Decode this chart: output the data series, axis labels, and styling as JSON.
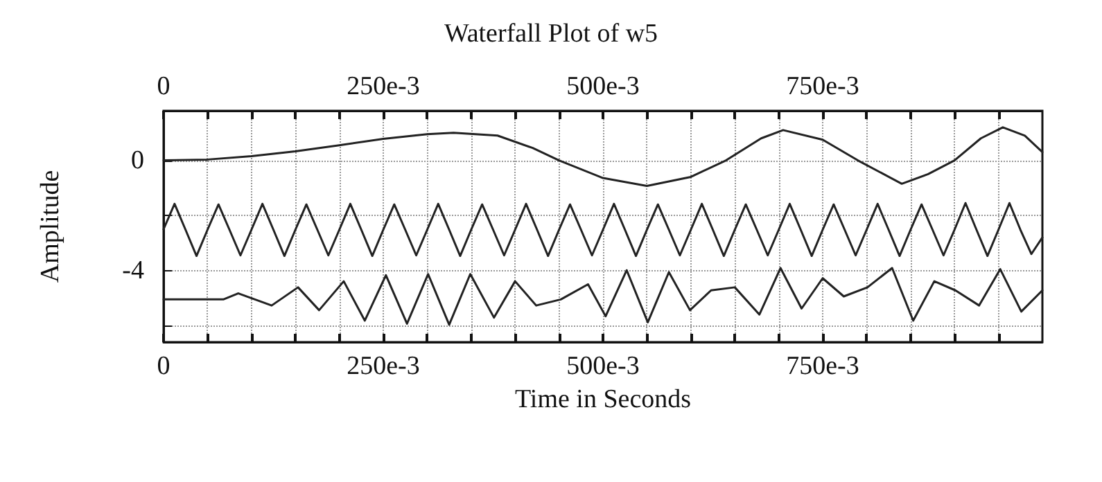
{
  "chart_data": {
    "type": "line",
    "title": "Waterfall Plot of w5",
    "xlabel": "Time in Seconds",
    "ylabel": "Amplitude",
    "xlim": [
      0,
      1
    ],
    "xticks": [
      0,
      {
        "value": 0.05,
        "label": null
      },
      {
        "value": 0.1,
        "label": null
      },
      {
        "value": 0.15,
        "label": null
      },
      {
        "value": 0.2,
        "label": null
      },
      {
        "value": 0.25,
        "label": "250e-3"
      },
      {
        "value": 0.3,
        "label": null
      },
      {
        "value": 0.35,
        "label": null
      },
      {
        "value": 0.4,
        "label": null
      },
      {
        "value": 0.45,
        "label": null
      },
      {
        "value": 0.5,
        "label": "500e-3"
      },
      {
        "value": 0.55,
        "label": null
      },
      {
        "value": 0.6,
        "label": null
      },
      {
        "value": 0.65,
        "label": null
      },
      {
        "value": 0.7,
        "label": null
      },
      {
        "value": 0.75,
        "label": "750e-3"
      },
      {
        "value": 0.8,
        "label": null
      },
      {
        "value": 0.85,
        "label": null
      },
      {
        "value": 0.9,
        "label": null
      },
      {
        "value": 0.95,
        "label": null
      }
    ],
    "x2lim": [
      0,
      1
    ],
    "x2ticks": [
      0,
      {
        "value": 0.05,
        "label": null
      },
      {
        "value": 0.1,
        "label": null
      },
      {
        "value": 0.15,
        "label": null
      },
      {
        "value": 0.2,
        "label": null
      },
      {
        "value": 0.25,
        "label": "250e-3"
      },
      {
        "value": 0.3,
        "label": null
      },
      {
        "value": 0.35,
        "label": null
      },
      {
        "value": 0.4,
        "label": null
      },
      {
        "value": 0.45,
        "label": null
      },
      {
        "value": 0.5,
        "label": "500e-3"
      },
      {
        "value": 0.55,
        "label": null
      },
      {
        "value": 0.6,
        "label": null
      },
      {
        "value": 0.65,
        "label": null
      },
      {
        "value": 0.7,
        "label": null
      },
      {
        "value": 0.75,
        "label": "750e-3"
      },
      {
        "value": 0.8,
        "label": null
      },
      {
        "value": 0.85,
        "label": null
      },
      {
        "value": 0.9,
        "label": null
      },
      {
        "value": 0.95,
        "label": null
      }
    ],
    "ylim": [
      -6.6,
      1.8
    ],
    "yticks": [
      0,
      {
        "value": -2,
        "label": null
      },
      -4,
      {
        "value": -6,
        "label": null
      }
    ],
    "grid": true,
    "marker": "none",
    "line_style": "solid",
    "series": [
      {
        "color": "#222222",
        "x": [
          0,
          0.05,
          0.1,
          0.15,
          0.2,
          0.25,
          0.3,
          0.33,
          0.38,
          0.42,
          0.45,
          0.5,
          0.55,
          0.6,
          0.64,
          0.68,
          0.705,
          0.75,
          0.79,
          0.84,
          0.87,
          0.9,
          0.93,
          0.955,
          0.98,
          1.0
        ],
        "values": [
          0,
          0.03,
          0.15,
          0.33,
          0.55,
          0.78,
          0.95,
          1.0,
          0.9,
          0.45,
          0,
          -0.64,
          -0.93,
          -0.6,
          0,
          0.8,
          1.1,
          0.75,
          0,
          -0.85,
          -0.5,
          0,
          0.8,
          1.2,
          0.9,
          0.3
        ]
      },
      {
        "color": "#222222",
        "x": [
          0,
          0.0125,
          0.025,
          0.0375,
          0.05,
          0.0625,
          0.075,
          0.0875,
          0.1,
          0.1125,
          0.125,
          0.1375,
          0.15,
          0.1625,
          0.175,
          0.1875,
          0.2,
          0.2125,
          0.225,
          0.2375,
          0.25,
          0.2625,
          0.275,
          0.2875,
          0.3,
          0.3125,
          0.325,
          0.3375,
          0.35,
          0.3625,
          0.375,
          0.3875,
          0.4,
          0.4125,
          0.425,
          0.4375,
          0.45,
          0.4625,
          0.475,
          0.4875,
          0.5,
          0.5125,
          0.525,
          0.5375,
          0.55,
          0.5625,
          0.575,
          0.5875,
          0.6,
          0.6125,
          0.625,
          0.6375,
          0.65,
          0.6625,
          0.675,
          0.6875,
          0.7,
          0.7125,
          0.725,
          0.7375,
          0.75,
          0.7625,
          0.775,
          0.7875,
          0.8,
          0.8125,
          0.825,
          0.8375,
          0.85,
          0.8625,
          0.875,
          0.8875,
          0.9,
          0.9125,
          0.925,
          0.9375,
          0.95,
          0.9625,
          0.975,
          0.9875,
          1.0
        ],
        "values": [
          -2.5,
          -1.58,
          -2.52,
          -3.47,
          -2.52,
          -1.6,
          -2.52,
          -3.45,
          -2.52,
          -1.58,
          -2.52,
          -3.47,
          -2.52,
          -1.6,
          -2.52,
          -3.45,
          -2.52,
          -1.58,
          -2.52,
          -3.47,
          -2.52,
          -1.6,
          -2.52,
          -3.45,
          -2.52,
          -1.58,
          -2.52,
          -3.47,
          -2.52,
          -1.6,
          -2.52,
          -3.45,
          -2.52,
          -1.58,
          -2.52,
          -3.47,
          -2.52,
          -1.6,
          -2.52,
          -3.45,
          -2.52,
          -1.58,
          -2.52,
          -3.47,
          -2.52,
          -1.6,
          -2.52,
          -3.45,
          -2.52,
          -1.58,
          -2.52,
          -3.47,
          -2.52,
          -1.6,
          -2.52,
          -3.45,
          -2.52,
          -1.58,
          -2.52,
          -3.47,
          -2.52,
          -1.6,
          -2.52,
          -3.45,
          -2.52,
          -1.58,
          -2.52,
          -3.47,
          -2.52,
          -1.6,
          -2.52,
          -3.45,
          -2.52,
          -1.55,
          -2.52,
          -3.47,
          -2.52,
          -1.55,
          -2.52,
          -3.4,
          -2.8
        ]
      },
      {
        "color": "#222222",
        "x": [
          0,
          0.068,
          0.085,
          0.123,
          0.153,
          0.177,
          0.205,
          0.229,
          0.253,
          0.277,
          0.301,
          0.325,
          0.349,
          0.376,
          0.4,
          0.424,
          0.452,
          0.483,
          0.503,
          0.527,
          0.551,
          0.575,
          0.599,
          0.623,
          0.65,
          0.678,
          0.702,
          0.726,
          0.75,
          0.774,
          0.801,
          0.829,
          0.853,
          0.877,
          0.901,
          0.928,
          0.952,
          0.976,
          1.0
        ],
        "values": [
          -5.05,
          -5.05,
          -4.83,
          -5.27,
          -4.61,
          -5.44,
          -4.39,
          -5.82,
          -4.17,
          -5.93,
          -4.13,
          -5.97,
          -4.13,
          -5.71,
          -4.39,
          -5.27,
          -5.05,
          -4.5,
          -5.66,
          -3.99,
          -5.88,
          -4.06,
          -5.44,
          -4.72,
          -4.61,
          -5.6,
          -3.91,
          -5.38,
          -4.28,
          -4.94,
          -4.61,
          -3.91,
          -5.82,
          -4.39,
          -4.72,
          -5.27,
          -3.95,
          -5.49,
          -4.72
        ]
      }
    ]
  }
}
